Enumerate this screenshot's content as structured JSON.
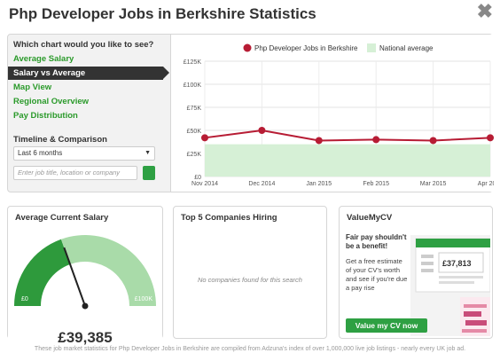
{
  "title": "Php Developer Jobs in Berkshire Statistics",
  "menu": {
    "question": "Which chart would you like to see?",
    "items": [
      "Average Salary",
      "Salary vs Average",
      "Map View",
      "Regional Overview",
      "Pay Distribution"
    ],
    "active_index": 1
  },
  "timeline": {
    "label": "Timeline & Comparison",
    "selected": "Last 6 months",
    "search_placeholder": "Enter job title, location or company"
  },
  "chart_data": {
    "type": "line",
    "title": "",
    "x": [
      "Nov 2014",
      "Dec 2014",
      "Jan 2015",
      "Feb 2015",
      "Mar 2015",
      "Apr 2015"
    ],
    "series": [
      {
        "name": "Php Developer Jobs in Berkshire",
        "values": [
          42000,
          50000,
          39000,
          40000,
          39000,
          42000
        ],
        "color": "#b71c34"
      },
      {
        "name": "National average",
        "values": [
          35000,
          35000,
          35000,
          35000,
          35000,
          35000
        ],
        "color": "#d6f0d6"
      }
    ],
    "yticks": [
      "£0",
      "£25K",
      "£50K",
      "£75K",
      "£100K",
      "£125K"
    ],
    "ylim": [
      0,
      125000
    ],
    "grid": true,
    "legend": "top"
  },
  "avg_salary": {
    "title": "Average Current Salary",
    "value": "£39,385",
    "min_label": "£0",
    "max_label": "£100K",
    "fraction": 0.39
  },
  "companies": {
    "title": "Top 5 Companies Hiring",
    "empty_message": "No companies found for this search"
  },
  "valuemycv": {
    "title": "ValueMyCV",
    "headline": "Fair pay shouldn't be a benefit!",
    "body": "Get a free estimate of your CV's worth and see if you're due a pay rise",
    "button": "Value my CV now",
    "estimate": "£37,813"
  },
  "footer": "These job market statistics for Php Developer Jobs in Berkshire are compiled from Adzuna's index of over 1,000,000 live job listings - nearly every UK job ad."
}
